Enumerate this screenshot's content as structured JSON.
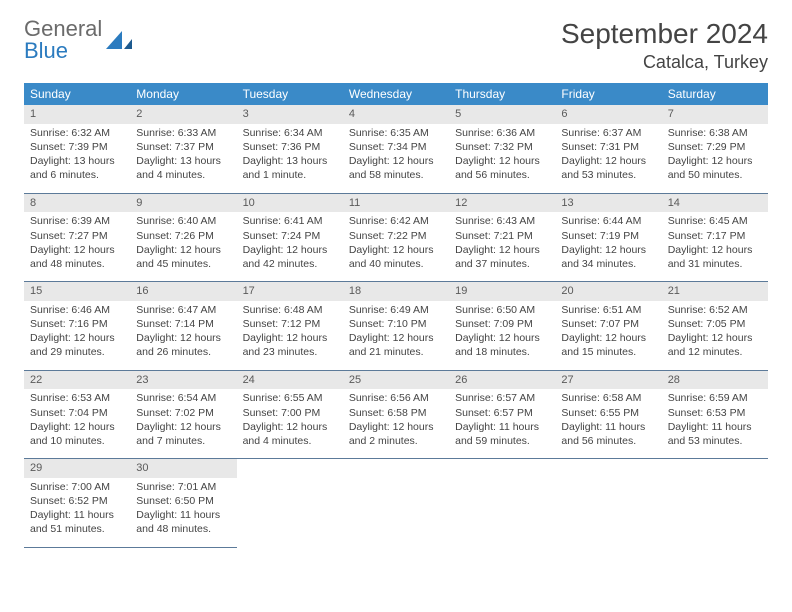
{
  "logo": {
    "text1": "General",
    "text2": "Blue"
  },
  "title": {
    "month": "September 2024",
    "location": "Catalca, Turkey"
  },
  "colors": {
    "header_bg": "#3a8ac8",
    "header_text": "#ffffff",
    "daynum_bg": "#e8e8e8",
    "daynum_text": "#5a5a5a",
    "body_text": "#444444",
    "row_border": "#5c7a99",
    "logo_gray": "#6b6b6b",
    "logo_blue": "#2b7bbf"
  },
  "weekdays": [
    "Sunday",
    "Monday",
    "Tuesday",
    "Wednesday",
    "Thursday",
    "Friday",
    "Saturday"
  ],
  "weeks": [
    [
      {
        "n": "1",
        "sr": "Sunrise: 6:32 AM",
        "ss": "Sunset: 7:39 PM",
        "dl": "Daylight: 13 hours and 6 minutes."
      },
      {
        "n": "2",
        "sr": "Sunrise: 6:33 AM",
        "ss": "Sunset: 7:37 PM",
        "dl": "Daylight: 13 hours and 4 minutes."
      },
      {
        "n": "3",
        "sr": "Sunrise: 6:34 AM",
        "ss": "Sunset: 7:36 PM",
        "dl": "Daylight: 13 hours and 1 minute."
      },
      {
        "n": "4",
        "sr": "Sunrise: 6:35 AM",
        "ss": "Sunset: 7:34 PM",
        "dl": "Daylight: 12 hours and 58 minutes."
      },
      {
        "n": "5",
        "sr": "Sunrise: 6:36 AM",
        "ss": "Sunset: 7:32 PM",
        "dl": "Daylight: 12 hours and 56 minutes."
      },
      {
        "n": "6",
        "sr": "Sunrise: 6:37 AM",
        "ss": "Sunset: 7:31 PM",
        "dl": "Daylight: 12 hours and 53 minutes."
      },
      {
        "n": "7",
        "sr": "Sunrise: 6:38 AM",
        "ss": "Sunset: 7:29 PM",
        "dl": "Daylight: 12 hours and 50 minutes."
      }
    ],
    [
      {
        "n": "8",
        "sr": "Sunrise: 6:39 AM",
        "ss": "Sunset: 7:27 PM",
        "dl": "Daylight: 12 hours and 48 minutes."
      },
      {
        "n": "9",
        "sr": "Sunrise: 6:40 AM",
        "ss": "Sunset: 7:26 PM",
        "dl": "Daylight: 12 hours and 45 minutes."
      },
      {
        "n": "10",
        "sr": "Sunrise: 6:41 AM",
        "ss": "Sunset: 7:24 PM",
        "dl": "Daylight: 12 hours and 42 minutes."
      },
      {
        "n": "11",
        "sr": "Sunrise: 6:42 AM",
        "ss": "Sunset: 7:22 PM",
        "dl": "Daylight: 12 hours and 40 minutes."
      },
      {
        "n": "12",
        "sr": "Sunrise: 6:43 AM",
        "ss": "Sunset: 7:21 PM",
        "dl": "Daylight: 12 hours and 37 minutes."
      },
      {
        "n": "13",
        "sr": "Sunrise: 6:44 AM",
        "ss": "Sunset: 7:19 PM",
        "dl": "Daylight: 12 hours and 34 minutes."
      },
      {
        "n": "14",
        "sr": "Sunrise: 6:45 AM",
        "ss": "Sunset: 7:17 PM",
        "dl": "Daylight: 12 hours and 31 minutes."
      }
    ],
    [
      {
        "n": "15",
        "sr": "Sunrise: 6:46 AM",
        "ss": "Sunset: 7:16 PM",
        "dl": "Daylight: 12 hours and 29 minutes."
      },
      {
        "n": "16",
        "sr": "Sunrise: 6:47 AM",
        "ss": "Sunset: 7:14 PM",
        "dl": "Daylight: 12 hours and 26 minutes."
      },
      {
        "n": "17",
        "sr": "Sunrise: 6:48 AM",
        "ss": "Sunset: 7:12 PM",
        "dl": "Daylight: 12 hours and 23 minutes."
      },
      {
        "n": "18",
        "sr": "Sunrise: 6:49 AM",
        "ss": "Sunset: 7:10 PM",
        "dl": "Daylight: 12 hours and 21 minutes."
      },
      {
        "n": "19",
        "sr": "Sunrise: 6:50 AM",
        "ss": "Sunset: 7:09 PM",
        "dl": "Daylight: 12 hours and 18 minutes."
      },
      {
        "n": "20",
        "sr": "Sunrise: 6:51 AM",
        "ss": "Sunset: 7:07 PM",
        "dl": "Daylight: 12 hours and 15 minutes."
      },
      {
        "n": "21",
        "sr": "Sunrise: 6:52 AM",
        "ss": "Sunset: 7:05 PM",
        "dl": "Daylight: 12 hours and 12 minutes."
      }
    ],
    [
      {
        "n": "22",
        "sr": "Sunrise: 6:53 AM",
        "ss": "Sunset: 7:04 PM",
        "dl": "Daylight: 12 hours and 10 minutes."
      },
      {
        "n": "23",
        "sr": "Sunrise: 6:54 AM",
        "ss": "Sunset: 7:02 PM",
        "dl": "Daylight: 12 hours and 7 minutes."
      },
      {
        "n": "24",
        "sr": "Sunrise: 6:55 AM",
        "ss": "Sunset: 7:00 PM",
        "dl": "Daylight: 12 hours and 4 minutes."
      },
      {
        "n": "25",
        "sr": "Sunrise: 6:56 AM",
        "ss": "Sunset: 6:58 PM",
        "dl": "Daylight: 12 hours and 2 minutes."
      },
      {
        "n": "26",
        "sr": "Sunrise: 6:57 AM",
        "ss": "Sunset: 6:57 PM",
        "dl": "Daylight: 11 hours and 59 minutes."
      },
      {
        "n": "27",
        "sr": "Sunrise: 6:58 AM",
        "ss": "Sunset: 6:55 PM",
        "dl": "Daylight: 11 hours and 56 minutes."
      },
      {
        "n": "28",
        "sr": "Sunrise: 6:59 AM",
        "ss": "Sunset: 6:53 PM",
        "dl": "Daylight: 11 hours and 53 minutes."
      }
    ],
    [
      {
        "n": "29",
        "sr": "Sunrise: 7:00 AM",
        "ss": "Sunset: 6:52 PM",
        "dl": "Daylight: 11 hours and 51 minutes."
      },
      {
        "n": "30",
        "sr": "Sunrise: 7:01 AM",
        "ss": "Sunset: 6:50 PM",
        "dl": "Daylight: 11 hours and 48 minutes."
      },
      {
        "empty": true
      },
      {
        "empty": true
      },
      {
        "empty": true
      },
      {
        "empty": true
      },
      {
        "empty": true
      }
    ]
  ]
}
